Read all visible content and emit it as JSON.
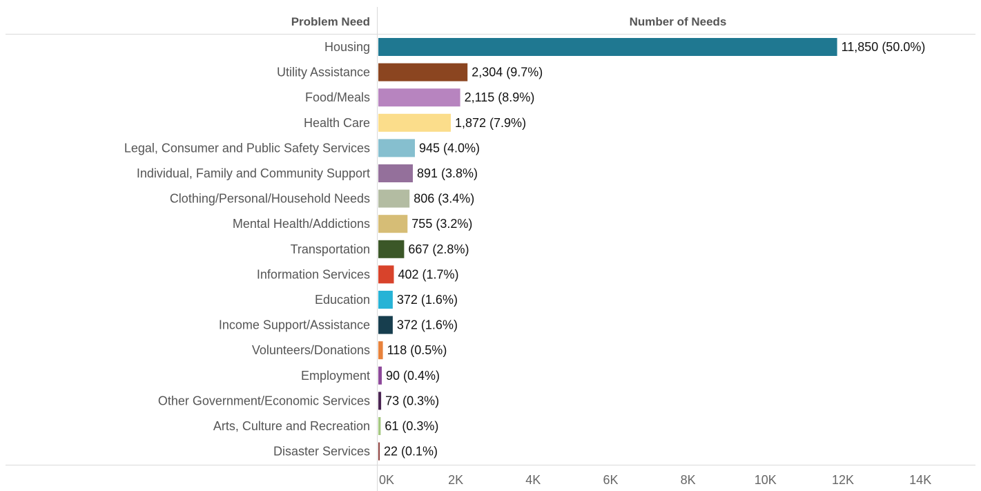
{
  "chart_data": {
    "type": "bar",
    "orientation": "horizontal",
    "row_header": "Problem Need",
    "column_header": "Number of Needs",
    "categories": [
      "Housing",
      "Utility Assistance",
      "Food/Meals",
      "Health Care",
      "Legal, Consumer and Public Safety Services",
      "Individual, Family and Community Support",
      "Clothing/Personal/Household Needs",
      "Mental Health/Addictions",
      "Transportation",
      "Information Services",
      "Education",
      "Income Support/Assistance",
      "Volunteers/Donations",
      "Employment",
      "Other Government/Economic Services",
      "Arts, Culture and Recreation",
      "Disaster Services"
    ],
    "values": [
      11850,
      2304,
      2115,
      1872,
      945,
      891,
      806,
      755,
      667,
      402,
      372,
      372,
      118,
      90,
      73,
      61,
      22
    ],
    "data_labels": [
      "11,850 (50.0%)",
      "2,304 (9.7%)",
      "2,115 (8.9%)",
      "1,872 (7.9%)",
      "945 (4.0%)",
      "891 (3.8%)",
      "806 (3.4%)",
      "755 (3.2%)",
      "667 (2.8%)",
      "402 (1.7%)",
      "372 (1.6%)",
      "372 (1.6%)",
      "118 (0.5%)",
      "90 (0.4%)",
      "73 (0.3%)",
      "61 (0.3%)",
      "22 (0.1%)"
    ],
    "colors": [
      "#1f7891",
      "#8b4520",
      "#b784bf",
      "#fbdd8b",
      "#86bfcf",
      "#94709b",
      "#b3bca2",
      "#d6bd76",
      "#3b5728",
      "#d8432b",
      "#27b3d6",
      "#173e4e",
      "#e8823b",
      "#8d489a",
      "#4a2452",
      "#a4c880",
      "#8c3d3a"
    ],
    "xticks": [
      "0K",
      "2K",
      "4K",
      "6K",
      "8K",
      "10K",
      "12K",
      "14K"
    ],
    "xlim": [
      0,
      15000
    ],
    "grid": false,
    "legend": "none"
  }
}
